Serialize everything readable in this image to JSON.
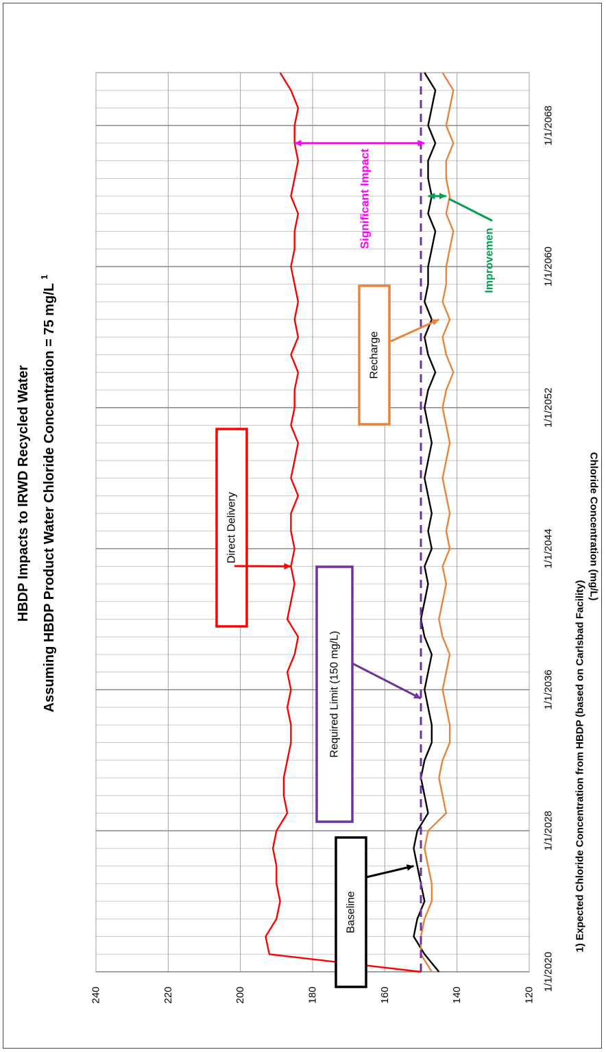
{
  "chart_data": {
    "type": "line",
    "title": "HBDP Impacts to IRWD Recycled Water",
    "subtitle": "Assuming HBDP Product Water Chloride Concentration = 75 mg/L",
    "subtitle_superscript": "1",
    "ylabel": "Chloride Concentration (mg/L)",
    "xlabel": "",
    "footnote": "1) Expected Chloride Concentration from HBDP (based on Carlsbad Facility)",
    "ylim": [
      120,
      240
    ],
    "yticks": [
      "240",
      "220",
      "200",
      "180",
      "160",
      "140",
      "120"
    ],
    "xlim": [
      "1/1/2020",
      "1/1/2071"
    ],
    "xticks": [
      "1/1/2020",
      "1/1/2028",
      "1/1/2036",
      "1/1/2044",
      "1/1/2052",
      "1/1/2060",
      "1/1/2068"
    ],
    "grid": true,
    "chart_orientation": "rotated 90 degrees counter-clockwise",
    "series": [
      {
        "name": "Direct Delivery",
        "color": "#ff0000",
        "x": [
          "1/1/2020",
          "1/1/2021",
          "1/1/2022",
          "1/1/2023",
          "1/1/2024",
          "1/1/2025",
          "1/1/2026",
          "1/1/2027",
          "1/1/2028",
          "1/1/2029",
          "1/1/2030",
          "1/1/2031",
          "1/1/2032",
          "1/1/2033",
          "1/1/2034",
          "1/1/2035",
          "1/1/2036",
          "1/1/2037",
          "1/1/2038",
          "1/1/2039",
          "1/1/2040",
          "1/1/2041",
          "1/1/2042",
          "1/1/2043",
          "1/1/2044",
          "1/1/2045",
          "1/1/2046",
          "1/1/2047",
          "1/1/2048",
          "1/1/2049",
          "1/1/2050",
          "1/1/2051",
          "1/1/2052",
          "1/1/2053",
          "1/1/2054",
          "1/1/2055",
          "1/1/2056",
          "1/1/2057",
          "1/1/2058",
          "1/1/2059",
          "1/1/2060",
          "1/1/2061",
          "1/1/2062",
          "1/1/2063",
          "1/1/2064",
          "1/1/2065",
          "1/1/2066",
          "1/1/2067",
          "1/1/2068",
          "1/1/2069",
          "1/1/2070",
          "1/1/2071"
        ],
        "y": [
          150,
          192,
          193,
          190,
          189,
          190,
          190,
          191,
          190,
          187,
          188,
          188,
          187,
          186,
          186,
          187,
          186,
          187,
          185,
          184,
          187,
          186,
          185,
          186,
          185,
          186,
          186,
          184,
          186,
          185,
          184,
          186,
          185,
          185,
          184,
          186,
          184,
          185,
          184,
          185,
          186,
          185,
          185,
          184,
          186,
          185,
          184,
          185,
          185,
          184,
          186,
          189
        ]
      },
      {
        "name": "Baseline",
        "color": "#000000",
        "x": [
          "1/1/2020",
          "1/1/2021",
          "1/1/2022",
          "1/1/2023",
          "1/1/2024",
          "1/1/2025",
          "1/1/2026",
          "1/1/2027",
          "1/1/2028",
          "1/1/2029",
          "1/1/2030",
          "1/1/2031",
          "1/1/2032",
          "1/1/2033",
          "1/1/2034",
          "1/1/2035",
          "1/1/2036",
          "1/1/2037",
          "1/1/2038",
          "1/1/2039",
          "1/1/2040",
          "1/1/2041",
          "1/1/2042",
          "1/1/2043",
          "1/1/2044",
          "1/1/2045",
          "1/1/2046",
          "1/1/2047",
          "1/1/2048",
          "1/1/2049",
          "1/1/2050",
          "1/1/2051",
          "1/1/2052",
          "1/1/2053",
          "1/1/2054",
          "1/1/2055",
          "1/1/2056",
          "1/1/2057",
          "1/1/2058",
          "1/1/2059",
          "1/1/2060",
          "1/1/2061",
          "1/1/2062",
          "1/1/2063",
          "1/1/2064",
          "1/1/2065",
          "1/1/2066",
          "1/1/2067",
          "1/1/2068",
          "1/1/2069",
          "1/1/2070",
          "1/1/2071"
        ],
        "y": [
          145,
          149,
          152,
          151,
          149,
          150,
          151,
          152,
          151,
          148,
          149,
          150,
          149,
          147,
          147,
          148,
          149,
          148,
          147,
          149,
          150,
          149,
          148,
          149,
          147,
          148,
          147,
          148,
          149,
          148,
          147,
          148,
          149,
          148,
          146,
          148,
          149,
          147,
          149,
          148,
          148,
          147,
          146,
          148,
          147,
          148,
          148,
          146,
          148,
          147,
          146,
          149
        ]
      },
      {
        "name": "Recharge",
        "color": "#e8843a",
        "x": [
          "1/1/2020",
          "1/1/2021",
          "1/1/2022",
          "1/1/2023",
          "1/1/2024",
          "1/1/2025",
          "1/1/2026",
          "1/1/2027",
          "1/1/2028",
          "1/1/2029",
          "1/1/2030",
          "1/1/2031",
          "1/1/2032",
          "1/1/2033",
          "1/1/2034",
          "1/1/2035",
          "1/1/2036",
          "1/1/2037",
          "1/1/2038",
          "1/1/2039",
          "1/1/2040",
          "1/1/2041",
          "1/1/2042",
          "1/1/2043",
          "1/1/2044",
          "1/1/2045",
          "1/1/2046",
          "1/1/2047",
          "1/1/2048",
          "1/1/2049",
          "1/1/2050",
          "1/1/2051",
          "1/1/2052",
          "1/1/2053",
          "1/1/2054",
          "1/1/2055",
          "1/1/2056",
          "1/1/2057",
          "1/1/2058",
          "1/1/2059",
          "1/1/2060",
          "1/1/2061",
          "1/1/2062",
          "1/1/2063",
          "1/1/2064",
          "1/1/2065",
          "1/1/2066",
          "1/1/2067",
          "1/1/2068",
          "1/1/2069",
          "1/1/2070",
          "1/1/2071"
        ],
        "y": [
          147,
          150,
          150,
          149,
          147,
          147,
          148,
          149,
          148,
          143,
          144,
          145,
          144,
          142,
          142,
          143,
          144,
          143,
          142,
          144,
          145,
          144,
          143,
          144,
          142,
          143,
          142,
          143,
          144,
          143,
          142,
          143,
          144,
          143,
          141,
          143,
          144,
          142,
          144,
          143,
          143,
          142,
          141,
          143,
          142,
          143,
          143,
          141,
          143,
          142,
          141,
          144
        ]
      },
      {
        "name": "Required Limit (150 mg/L)",
        "color": "#7030a0",
        "dashed": true,
        "x": [
          "1/1/2020",
          "1/1/2071"
        ],
        "y": [
          150,
          150
        ]
      }
    ],
    "annotations": [
      {
        "text": "Direct Delivery",
        "color": "#ff0000",
        "arrow_to": {
          "x": "1/1/2043",
          "y": 186
        }
      },
      {
        "text": "Required Limit (150 mg/L)",
        "color": "#7030a0",
        "arrow_to": {
          "x": "1/1/2035.5",
          "y": 150
        }
      },
      {
        "text": "Baseline",
        "color": "#000000",
        "arrow_to": {
          "x": "1/1/2026",
          "y": 152
        }
      },
      {
        "text": "Recharge",
        "color": "#e8843a",
        "arrow_to": {
          "x": "1/1/2057",
          "y": 145
        }
      },
      {
        "text": "Significant Impact",
        "color": "#ff00ff",
        "range_at_x": "1/1/2067",
        "y_from": 149,
        "y_to": 185
      },
      {
        "text": "Improvemen",
        "color": "#00a050",
        "range_at_x": "1/1/2064",
        "y_from": 143,
        "y_to": 148
      }
    ]
  }
}
